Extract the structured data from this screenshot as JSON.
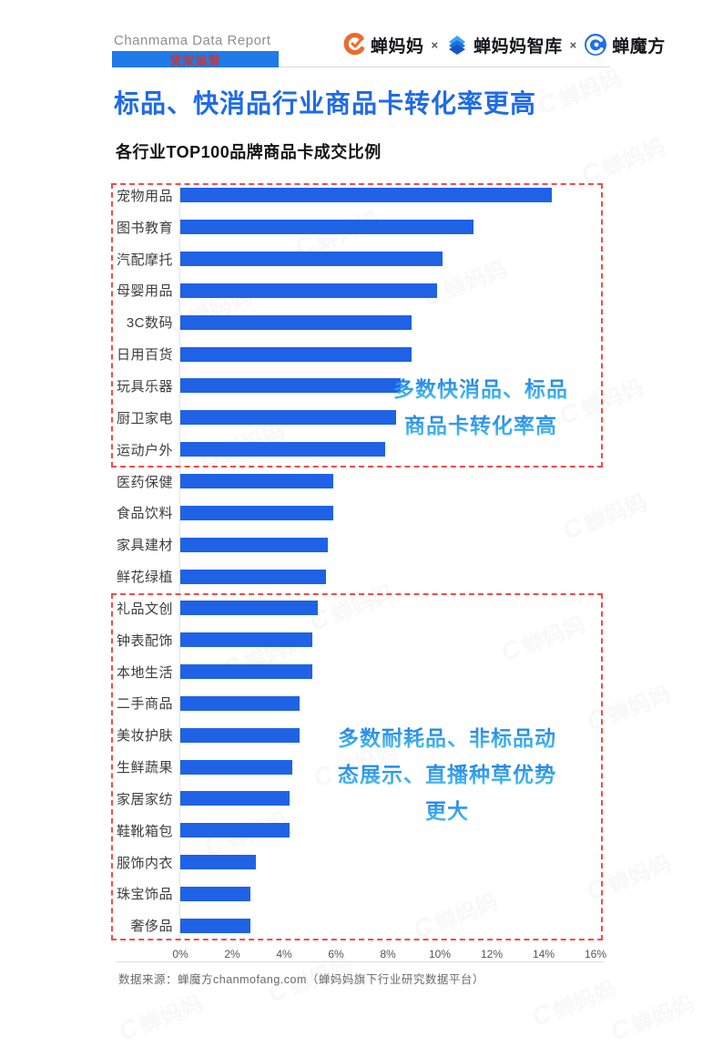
{
  "header": {
    "brand": "Chanmama Data Report",
    "tag": "货架运营",
    "separator": "×",
    "logos": [
      {
        "icon": "chanmama-logo-icon",
        "label": "蝉妈妈"
      },
      {
        "icon": "chanmama-zhiku-logo-icon",
        "label": "蝉妈妈智库"
      },
      {
        "icon": "chanmofang-logo-icon",
        "label": "蝉魔方"
      }
    ]
  },
  "title": "标品、快消品行业商品卡转化率更高",
  "chart_data": {
    "type": "bar",
    "orientation": "horizontal",
    "title": "各行业TOP100品牌商品卡成交比例",
    "unit": "%",
    "xlim": [
      0,
      16
    ],
    "x_ticks": [
      "0%",
      "2%",
      "4%",
      "6%",
      "8%",
      "10%",
      "12%",
      "14%",
      "16%"
    ],
    "grid": false,
    "bar_color": "#1f62e6",
    "categories": [
      "宠物用品",
      "图书教育",
      "汽配摩托",
      "母婴用品",
      "3C数码",
      "日用百货",
      "玩具乐器",
      "厨卫家电",
      "运动户外",
      "医药保健",
      "食品饮料",
      "家具建材",
      "鲜花绿植",
      "礼品文创",
      "钟表配饰",
      "本地生活",
      "二手商品",
      "美妆护肤",
      "生鲜蔬果",
      "家居家纺",
      "鞋靴箱包",
      "服饰内衣",
      "珠宝饰品",
      "奢侈品"
    ],
    "values": [
      14.3,
      11.3,
      10.1,
      9.9,
      8.9,
      8.9,
      8.5,
      8.3,
      7.9,
      5.9,
      5.9,
      5.7,
      5.6,
      5.3,
      5.1,
      5.1,
      4.6,
      4.6,
      4.3,
      4.2,
      4.2,
      2.9,
      2.7,
      2.7
    ],
    "highlight_boxes": [
      {
        "rows_from": "宠物用品",
        "rows_to": "运动户外",
        "color": "#f54a4a"
      },
      {
        "rows_from": "礼品文创",
        "rows_to": "奢侈品",
        "color": "#f54a4a"
      }
    ],
    "annotations": [
      {
        "lines": [
          "多数快消品、标品",
          "商品卡转化率高"
        ]
      },
      {
        "lines": [
          "多数耐耗品、非标品动",
          "态展示、直播种草优势",
          "更大"
        ]
      }
    ]
  },
  "footer": {
    "source": "数据来源：蝉魔方chanmofang.com（蝉妈妈旗下行业研究数据平台）"
  },
  "watermark": {
    "text": "蝉妈妈",
    "glyph": "C"
  },
  "colors": {
    "title_blue": "#1e6be8",
    "tab_blue": "#1e7be8",
    "tab_text_red": "#cf3333",
    "bar_blue": "#1f62e6",
    "box_red": "#f54a4a",
    "annotation_gradient": [
      "#1f7ce8",
      "#4ec9f3"
    ]
  }
}
